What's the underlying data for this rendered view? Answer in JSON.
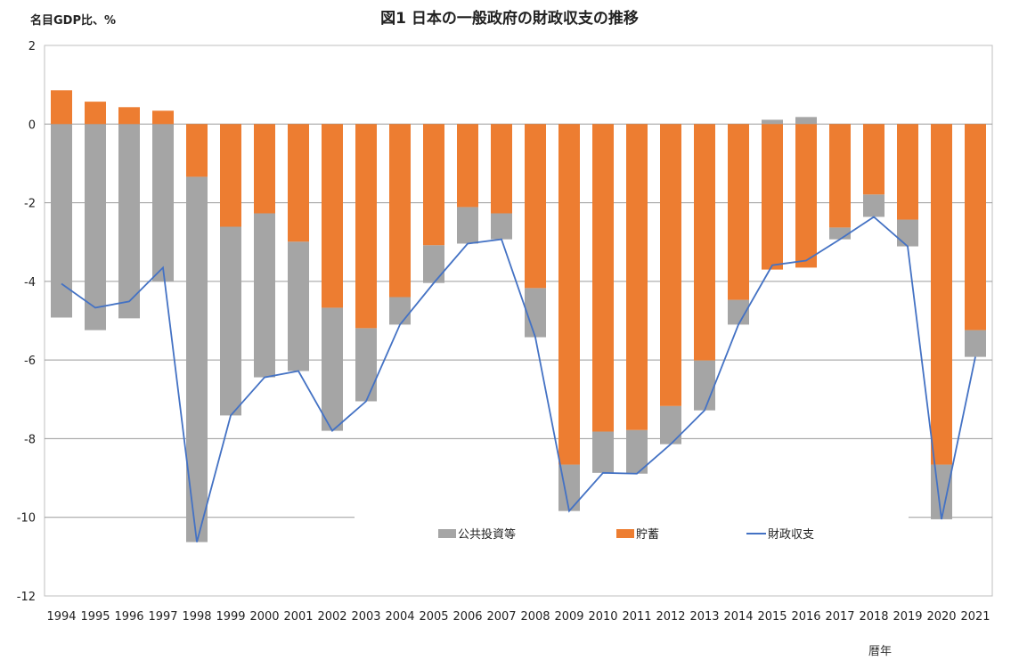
{
  "chart_data": {
    "type": "bar",
    "title": "図1 日本の一般政府の財政収支の推移",
    "ylabel": "名目GDP比、%",
    "xlabel": "暦年",
    "ylim": [
      -12,
      2
    ],
    "yticks": [
      2,
      0,
      -2,
      -4,
      -6,
      -8,
      -10,
      -12
    ],
    "grid": true,
    "legend_position": "bottom-inside",
    "categories": [
      "1994",
      "1995",
      "1996",
      "1997",
      "1998",
      "1999",
      "2000",
      "2001",
      "2002",
      "2003",
      "2004",
      "2005",
      "2006",
      "2007",
      "2008",
      "2009",
      "2010",
      "2011",
      "2012",
      "2013",
      "2014",
      "2015",
      "2016",
      "2017",
      "2018",
      "2019",
      "2020",
      "2021"
    ],
    "series": [
      {
        "name": "公共投資等",
        "type": "bar-stacked",
        "color": "#a5a5a5",
        "values": [
          -4.92,
          -5.24,
          -4.94,
          -3.99,
          -9.29,
          -4.8,
          -4.17,
          -3.29,
          -3.13,
          -1.86,
          -0.7,
          -0.96,
          -0.93,
          -0.66,
          -1.25,
          -1.18,
          -1.05,
          -1.11,
          -0.97,
          -1.27,
          -0.63,
          0.11,
          0.18,
          -0.3,
          -0.57,
          -0.68,
          -1.39,
          -0.68
        ]
      },
      {
        "name": "貯蓄",
        "type": "bar-stacked",
        "color": "#ed7d31",
        "values": [
          0.86,
          0.57,
          0.43,
          0.34,
          -1.34,
          -2.61,
          -2.27,
          -2.99,
          -4.67,
          -5.19,
          -4.4,
          -3.08,
          -2.11,
          -2.27,
          -4.17,
          -8.66,
          -7.82,
          -7.78,
          -7.17,
          -6.01,
          -4.47,
          -3.7,
          -3.65,
          -2.63,
          -1.79,
          -2.43,
          -8.66,
          -5.24
        ]
      },
      {
        "name": "財政収支",
        "type": "line",
        "color": "#4472c4",
        "values": [
          -4.06,
          -4.67,
          -4.51,
          -3.65,
          -10.63,
          -7.41,
          -6.44,
          -6.28,
          -7.8,
          -7.05,
          -5.1,
          -4.04,
          -3.04,
          -2.93,
          -5.42,
          -9.84,
          -8.87,
          -8.89,
          -8.14,
          -7.28,
          -5.1,
          -3.59,
          -3.47,
          -2.93,
          -2.36,
          -3.11,
          -10.05,
          -5.92
        ]
      }
    ]
  }
}
